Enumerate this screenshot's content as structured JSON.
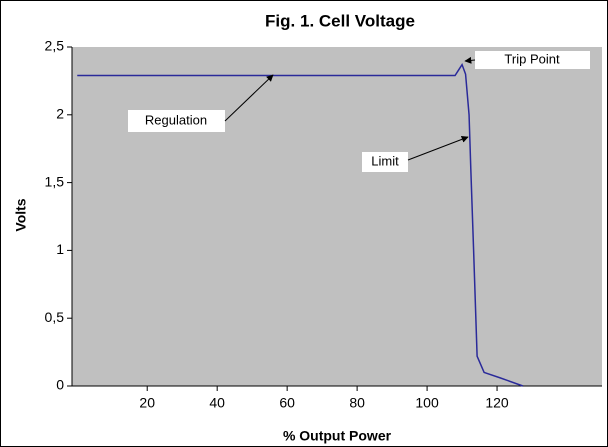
{
  "chart_data": {
    "type": "line",
    "title": "Fig. 1. Cell Voltage",
    "xlabel": "% Output Power",
    "ylabel": "Volts",
    "annotations": [
      "Trip Point",
      "Regulation",
      "Limit"
    ],
    "series": [
      {
        "name": "Cell Voltage",
        "color": "#2a2a9a",
        "x": [
          0,
          108,
          109,
          110,
          111,
          112,
          112.5,
          113.3,
          114.3,
          116.3,
          120.9,
          127.4
        ],
        "values": [
          2.29,
          2.29,
          2.33,
          2.37,
          2.3,
          2.0,
          1.6,
          1.0,
          0.22,
          0.1,
          0.06,
          0
        ]
      }
    ],
    "xlim": [
      -1.5,
      150
    ],
    "xticks": [
      20,
      40,
      60,
      80,
      100,
      120
    ],
    "ylim": [
      0,
      2.5
    ],
    "yticks": [
      0,
      {
        "value": 0.5,
        "label": "0,5"
      },
      1,
      {
        "value": 1.5,
        "label": "1,5"
      },
      2,
      {
        "value": 2.5,
        "label": "2,5"
      }
    ],
    "grid": false
  }
}
